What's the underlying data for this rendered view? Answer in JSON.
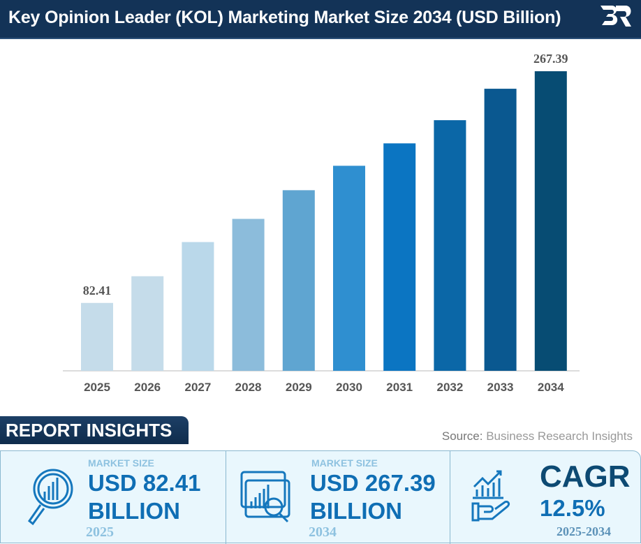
{
  "header": {
    "title": "Key Opinion Leader (KOL) Marketing Market Size 2034 (USD Billion)",
    "logo_text": "BR"
  },
  "chart_data": {
    "type": "bar",
    "title": "Key Opinion Leader (KOL) Marketing Market Size 2034 (USD Billion)",
    "categories": [
      "2025",
      "2026",
      "2027",
      "2028",
      "2029",
      "2030",
      "2031",
      "2032",
      "2033",
      "2034"
    ],
    "values": [
      82.41,
      103.7,
      131.0,
      149.5,
      172.4,
      191.9,
      209.8,
      228.3,
      253.4,
      267.39
    ],
    "data_labels": {
      "0": "82.41",
      "9": "267.39"
    },
    "colors": [
      "#c5dcea",
      "#c5dcea",
      "#bad8ea",
      "#8cbcdb",
      "#5fa5d1",
      "#2f8fd0",
      "#0b75c2",
      "#0b67a7",
      "#0a5890",
      "#074c73"
    ],
    "ylim": [
      28.2,
      267.39
    ],
    "grid": false,
    "xlabel": "",
    "ylabel": ""
  },
  "insights": {
    "title": "REPORT INSIGHTS",
    "source_label": "Source:",
    "source": "Business Research Insights",
    "cards": [
      {
        "label": "MARKET SIZE",
        "value": "USD 82.41",
        "unit": "BILLION",
        "year": "2025",
        "icon": "magnifier-chart-icon"
      },
      {
        "label": "MARKET SIZE",
        "value": "USD 267.39",
        "unit": "BILLION",
        "year": "2034",
        "icon": "dashboard-magnifier-icon"
      },
      {
        "label": "CAGR",
        "value": "12.5%",
        "year": "2025-2034",
        "icon": "hand-growth-chart-icon"
      }
    ]
  }
}
